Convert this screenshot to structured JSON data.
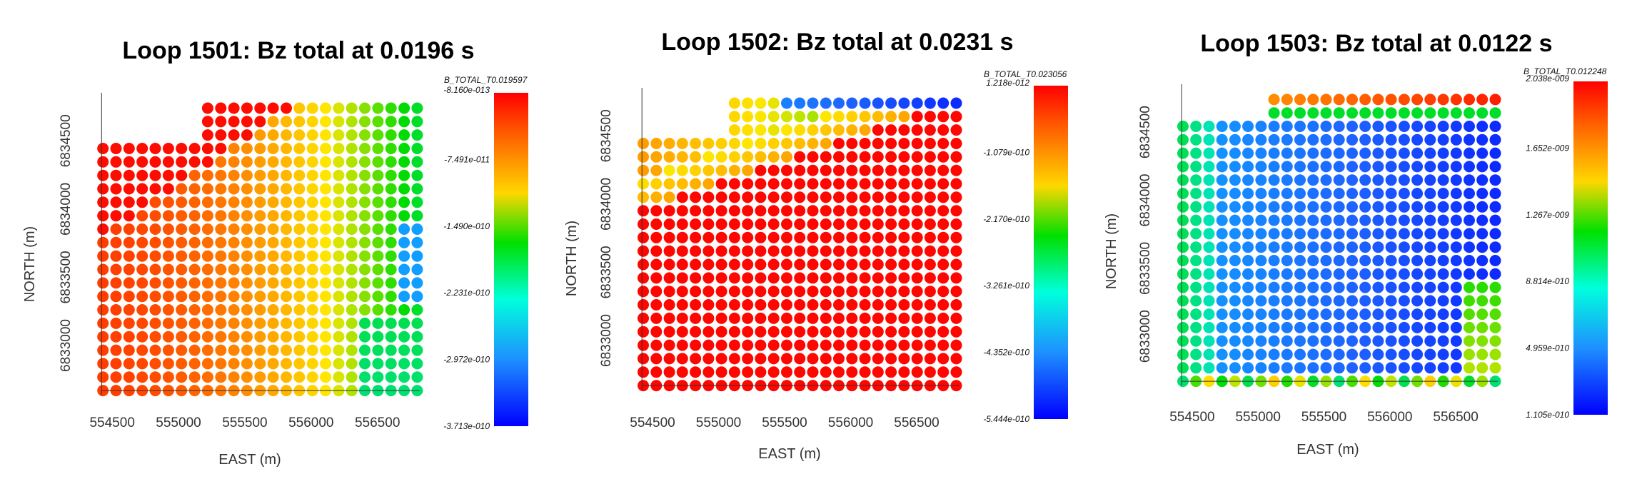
{
  "chart_data": [
    {
      "type": "scatter",
      "title": "Loop 1501: Bz total at 0.0196 s",
      "xlabel": "EAST (m)",
      "ylabel": "NORTH (m)",
      "x_ticks": [
        "554500",
        "555000",
        "555500",
        "556000",
        "556500"
      ],
      "y_ticks": [
        "6833000",
        "6833500",
        "6834000",
        "6834500"
      ],
      "xlim": [
        554300,
        556830
      ],
      "ylim": [
        6832550,
        6834800
      ],
      "colorbar": {
        "name": "B_TOTAL_T0.019597",
        "labels": [
          "-8.160e-013",
          "-7.491e-011",
          "-1.490e-010",
          "-2.231e-010",
          "-2.972e-010",
          "-3.713e-010"
        ]
      }
    },
    {
      "type": "scatter",
      "title": "Loop 1502: Bz total at 0.0231 s",
      "xlabel": "EAST (m)",
      "ylabel": "NORTH (m)",
      "x_ticks": [
        "554500",
        "555000",
        "555500",
        "556000",
        "556500"
      ],
      "y_ticks": [
        "6833000",
        "6833500",
        "6834000",
        "6834500"
      ],
      "xlim": [
        554300,
        556830
      ],
      "ylim": [
        6832550,
        6834800
      ],
      "colorbar": {
        "name": "B_TOTAL_T0.023056",
        "labels": [
          "1.218e-012",
          "-1.079e-010",
          "-2.170e-010",
          "-3.261e-010",
          "-4.352e-010",
          "-5.444e-010"
        ]
      }
    },
    {
      "type": "scatter",
      "title": "Loop 1503: Bz total at 0.0122 s",
      "xlabel": "EAST (m)",
      "ylabel": "NORTH (m)",
      "x_ticks": [
        "554500",
        "555000",
        "555500",
        "556000",
        "556500"
      ],
      "y_ticks": [
        "6833000",
        "6833500",
        "6834000",
        "6834500"
      ],
      "xlim": [
        554300,
        556830
      ],
      "ylim": [
        6832550,
        6834800
      ],
      "colorbar": {
        "name": "B_TOTAL_T0.012248",
        "labels": [
          "2.038e-009",
          "1.652e-009",
          "1.267e-009",
          "8.814e-010",
          "4.959e-010",
          "1.105e-010"
        ]
      }
    }
  ]
}
